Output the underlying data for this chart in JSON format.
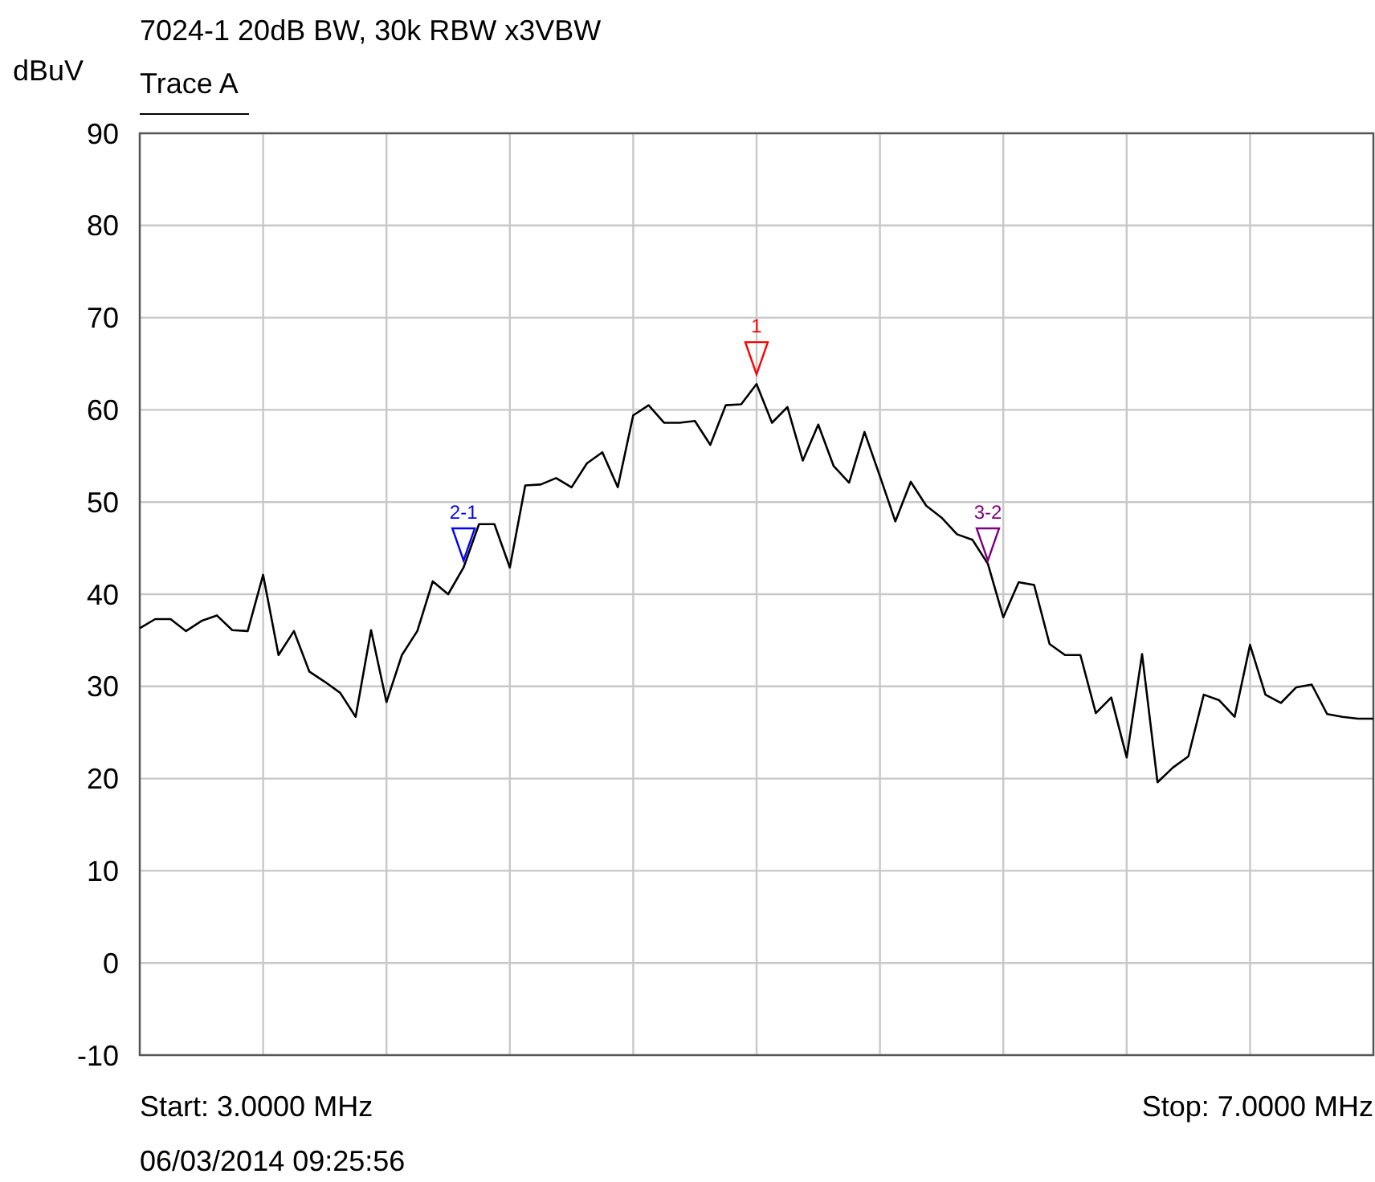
{
  "chart_data": {
    "type": "line",
    "title": "7024-1 20dB BW, 30k RBW x3VBW",
    "subtitle": "Trace A",
    "ylabel": "dBuV",
    "annotations": [
      "Start: 3.0000 MHz",
      "Stop: 7.0000 MHz",
      "06/03/2014 09:25:56"
    ],
    "categories": [
      null,
      null,
      null,
      null,
      null,
      null,
      null,
      null,
      null,
      null,
      null,
      null,
      null,
      null,
      null,
      null,
      null,
      null,
      null,
      null,
      null,
      null,
      null,
      null,
      null,
      null,
      null,
      null,
      null,
      null,
      null,
      null,
      null,
      null,
      null,
      null,
      null,
      null,
      null,
      null,
      null,
      null,
      null,
      null,
      null,
      null,
      null,
      null,
      null,
      null,
      null,
      null,
      null,
      null,
      null,
      null,
      null,
      null,
      null,
      null,
      null,
      null,
      null,
      null,
      null,
      null,
      null,
      null,
      null,
      null,
      null,
      null,
      null,
      null,
      null,
      null,
      null,
      null,
      null,
      null,
      null
    ],
    "ylim": [
      -10,
      90
    ],
    "yticks": [
      -10,
      0,
      10,
      20,
      30,
      40,
      50,
      60,
      70,
      80,
      90
    ],
    "grid": true,
    "tick_labels": "y",
    "series": [
      {
        "color": "#000000",
        "values": [
          36.3,
          37.3,
          37.3,
          36.0,
          37.1,
          37.7,
          36.1,
          36.0,
          42.1,
          33.4,
          36.0,
          31.6,
          30.5,
          29.3,
          26.7,
          36.1,
          28.3,
          33.4,
          36.0,
          41.4,
          40.0,
          42.9,
          47.6,
          47.6,
          42.9,
          51.8,
          51.9,
          52.6,
          51.6,
          54.2,
          55.4,
          51.6,
          59.4,
          60.5,
          58.6,
          58.6,
          58.8,
          56.2,
          60.5,
          60.6,
          62.8,
          58.6,
          60.3,
          54.5,
          58.4,
          53.9,
          52.1,
          57.6,
          52.8,
          47.9,
          52.2,
          49.6,
          48.3,
          46.5,
          45.9,
          43.3,
          37.5,
          41.3,
          41.0,
          34.6,
          33.4,
          33.4,
          27.1,
          28.8,
          22.3,
          33.5,
          19.6,
          21.2,
          22.4,
          29.1,
          28.5,
          26.7,
          34.5,
          29.1,
          28.2,
          29.9,
          30.2,
          27.0,
          26.7,
          26.5,
          26.5
        ]
      },
      {
        "type": "scatter",
        "name": "1",
        "color": "#ff0000",
        "marker": "triangle",
        "values": [
          null,
          null,
          null,
          null,
          null,
          null,
          null,
          null,
          null,
          null,
          null,
          null,
          null,
          null,
          null,
          null,
          null,
          null,
          null,
          null,
          null,
          null,
          null,
          null,
          null,
          null,
          null,
          null,
          null,
          null,
          null,
          null,
          null,
          null,
          null,
          null,
          null,
          null,
          null,
          null,
          65.6,
          null,
          null,
          null,
          null,
          null,
          null,
          null,
          null,
          null,
          null,
          null,
          null,
          null,
          null,
          null,
          null,
          null,
          null,
          null,
          null,
          null,
          null,
          null,
          null,
          null,
          null,
          null,
          null,
          null,
          null,
          null,
          null,
          null,
          null,
          null,
          null,
          null,
          null,
          null,
          null
        ]
      },
      {
        "type": "scatter",
        "name": "2-1",
        "color": "#0000ff",
        "marker": "triangle",
        "values": [
          null,
          null,
          null,
          null,
          null,
          null,
          null,
          null,
          null,
          null,
          null,
          null,
          null,
          null,
          null,
          null,
          null,
          null,
          null,
          null,
          null,
          45.4,
          null,
          null,
          null,
          null,
          null,
          null,
          null,
          null,
          null,
          null,
          null,
          null,
          null,
          null,
          null,
          null,
          null,
          null,
          null,
          null,
          null,
          null,
          null,
          null,
          null,
          null,
          null,
          null,
          null,
          null,
          null,
          null,
          null,
          null,
          null,
          null,
          null,
          null,
          null,
          null,
          null,
          null,
          null,
          null,
          null,
          null,
          null,
          null,
          null,
          null,
          null,
          null,
          null,
          null,
          null,
          null,
          null,
          null,
          null
        ]
      },
      {
        "type": "scatter",
        "name": "3-2",
        "color": "#800080",
        "marker": "triangle",
        "values": [
          null,
          null,
          null,
          null,
          null,
          null,
          null,
          null,
          null,
          null,
          null,
          null,
          null,
          null,
          null,
          null,
          null,
          null,
          null,
          null,
          null,
          null,
          null,
          null,
          null,
          null,
          null,
          null,
          null,
          null,
          null,
          null,
          null,
          null,
          null,
          null,
          null,
          null,
          null,
          null,
          null,
          null,
          null,
          null,
          null,
          null,
          null,
          null,
          null,
          null,
          null,
          null,
          null,
          null,
          null,
          45.4,
          null,
          null,
          null,
          null,
          null,
          null,
          null,
          null,
          null,
          null,
          null,
          null,
          null,
          null,
          null,
          null,
          null,
          null,
          null,
          null,
          null,
          null,
          null,
          null,
          null
        ]
      }
    ]
  }
}
